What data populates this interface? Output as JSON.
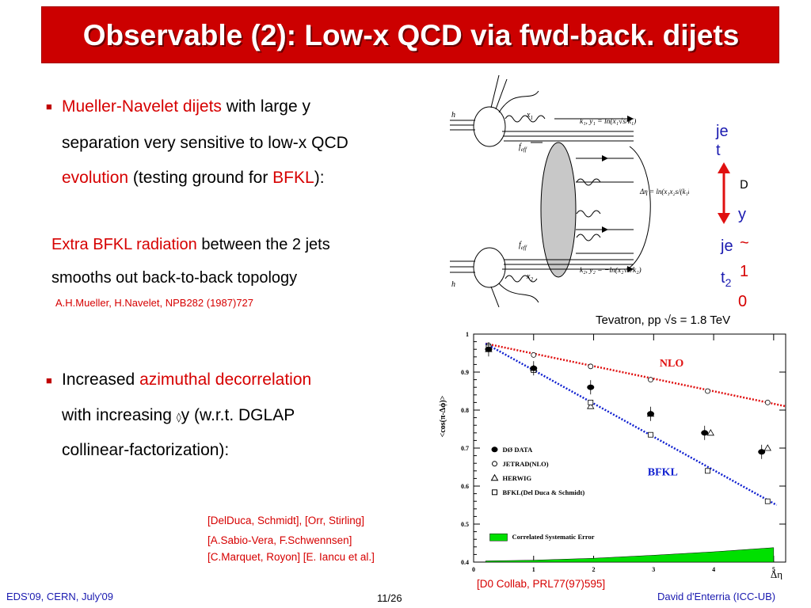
{
  "title": "Observable (2): Low-x QCD via fwd-back. dijets",
  "bullet1": {
    "line1_red": "Mueller-Navelet dijets",
    "line1_black": " with large y",
    "line2": "separation very sensitive to low-x QCD",
    "line3_red1": "evolution",
    "line3_black": " (testing ground for ",
    "line3_red2": "BFKL",
    "line3_end": "):"
  },
  "sub1": {
    "line1_red": "Extra BFKL radiation",
    "line1_black": " between the 2 jets",
    "line2": "smooths out back-to-back topology",
    "citation": "A.H.Mueller, H.Navelet, NPB282 (1987)727"
  },
  "bullet2": {
    "line1_black": "Increased ",
    "line1_red": "azimuthal decorrelation",
    "line2_a": "with increasing ",
    "line2_b": "y (w.r.t. DGLAP",
    "line3": "collinear-factorization):"
  },
  "refs": [
    "[DelDuca, Schmidt], [Orr, Stirling]",
    "[A.Sabio-Vera, F.Schwennsen]",
    "[C.Marquet, Royon] [E. Iancu et al.]"
  ],
  "diagram": {
    "h_top": "h",
    "h_bottom": "h",
    "x1": "x",
    "x1_sub": "1",
    "x2": "x",
    "x2_sub": "2",
    "feff_top": "f",
    "feff_bottom": "f",
    "feff_sub": "eff",
    "k1_label": "k₁, y₁ = ln(x₁√s/k₁)",
    "k2_label": "k₂, y₂ = −ln(x₂√s/k₂)",
    "deta_label": "Δη = ln(x₁x₂s/(k₁k₂))"
  },
  "jets": {
    "jet1_a": "je",
    "jet1_b": "t",
    "jet2_a": "je",
    "jet2_b": "t",
    "jet2_sub": "2",
    "dy_symbol": "D",
    "dy_letter": "y",
    "tilde": "~",
    "num_a": "1",
    "num_b": "0"
  },
  "chart_caption": "Tevatron, pp  √s = 1.8 TeV",
  "chart_footer": "[D0 Collab, PRL77(97)595]",
  "chart_data": {
    "type": "scatter",
    "ylabel": "<cos(π-Δϕ)>",
    "xlabel": "Δη",
    "xlim": [
      0,
      5.2
    ],
    "ylim": [
      0.4,
      1.0
    ],
    "x_ticks": [
      "0",
      "1",
      "2",
      "3",
      "4",
      "5"
    ],
    "y_ticks": [
      "0.4",
      "0.5",
      "0.6",
      "0.7",
      "0.8",
      "0.9",
      "1"
    ],
    "nlo_label": "NLO",
    "bfkl_label": "BFKL",
    "legend": [
      "DØ DATA",
      "JETRAD(NLO)",
      "HERWIG",
      "BFKL(Del Duca & Schmidt)"
    ],
    "sys_label": "Correlated Systematic Error",
    "series": [
      {
        "name": "DØ DATA",
        "x": [
          0.25,
          1.0,
          1.95,
          2.95,
          3.85,
          4.8
        ],
        "y": [
          0.96,
          0.91,
          0.86,
          0.79,
          0.74,
          0.69
        ]
      },
      {
        "name": "JETRAD(NLO)",
        "x": [
          0.25,
          1.0,
          1.95,
          2.95,
          3.9,
          4.9
        ],
        "y": [
          0.97,
          0.945,
          0.915,
          0.88,
          0.85,
          0.82
        ]
      },
      {
        "name": "HERWIG",
        "x": [
          0.25,
          1.0,
          1.95,
          2.95,
          3.95,
          4.9
        ],
        "y": [
          0.96,
          0.91,
          0.81,
          0.79,
          0.74,
          0.7
        ]
      },
      {
        "name": "BFKL(Del Duca & Schmidt)",
        "x": [
          0.25,
          1.0,
          1.95,
          2.95,
          3.9,
          4.9
        ],
        "y": [
          0.965,
          0.905,
          0.82,
          0.735,
          0.64,
          0.56
        ]
      }
    ],
    "nlo_line": {
      "x": [
        0.2,
        5.2
      ],
      "y": [
        0.975,
        0.81
      ]
    },
    "bfkl_line": {
      "x": [
        0.2,
        5.05
      ],
      "y": [
        0.975,
        0.55
      ]
    },
    "systematic": {
      "x": [
        0.2,
        1,
        2,
        3,
        4,
        5
      ],
      "y": [
        0.403,
        0.405,
        0.41,
        0.418,
        0.427,
        0.438
      ]
    },
    "colors": {
      "nlo": "#e01010",
      "bfkl": "#1020d0",
      "band": "#00e000"
    }
  },
  "footer": {
    "left": "EDS'09, CERN, July'09",
    "center": "11/26",
    "right": "David d'Enterria (ICC-UB)"
  }
}
